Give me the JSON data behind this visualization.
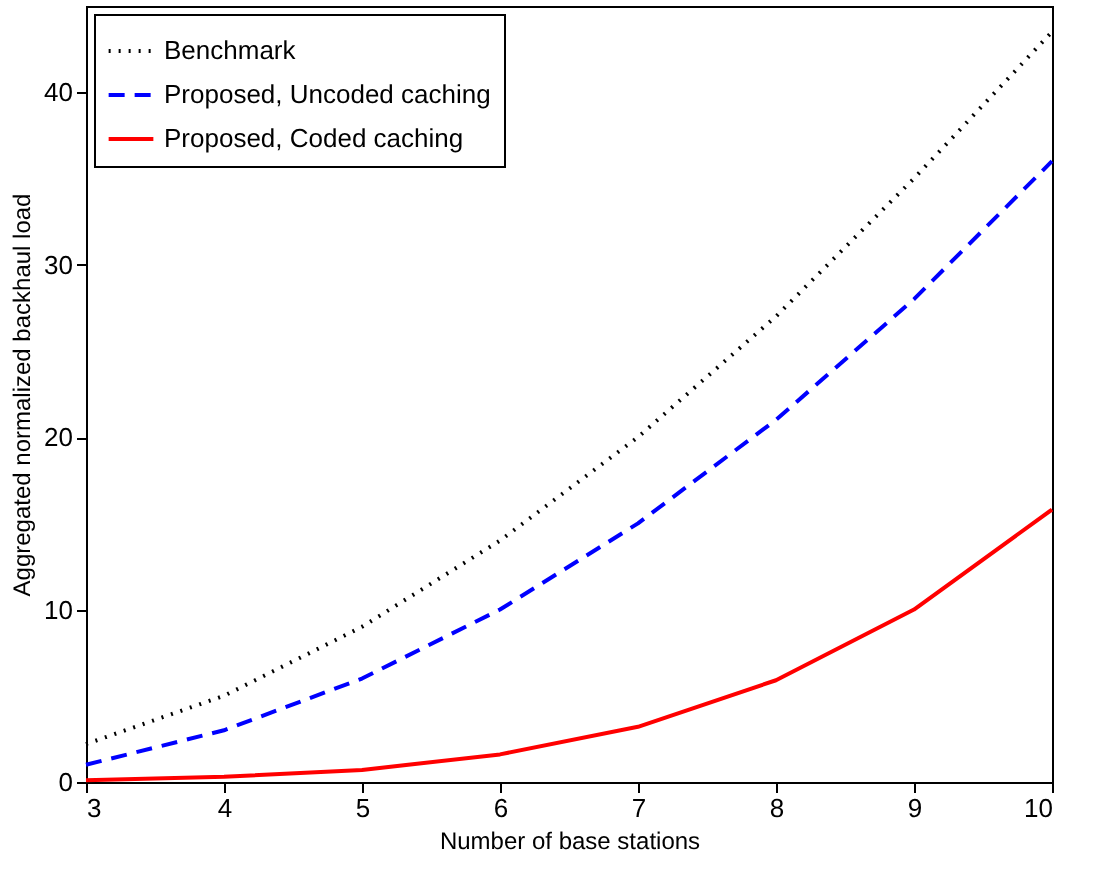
{
  "chart_data": {
    "type": "line",
    "xlabel": "Number of base stations",
    "ylabel": "Aggregated normalized backhaul load",
    "x": [
      3,
      4,
      5,
      6,
      7,
      8,
      9,
      10
    ],
    "series": [
      {
        "name": "Benchmark",
        "color": "#000000",
        "line_style": "dotted",
        "values": [
          2.2,
          5,
          9,
          14,
          20,
          27,
          35,
          43.5
        ]
      },
      {
        "name": "Proposed, Uncoded caching",
        "color": "#0000ff",
        "line_style": "dashed",
        "values": [
          1,
          3,
          6,
          10,
          15,
          21,
          28,
          36
        ]
      },
      {
        "name": "Proposed, Coded caching",
        "color": "#ff0000",
        "line_style": "solid",
        "values": [
          0.1,
          0.3,
          0.7,
          1.6,
          3.2,
          5.9,
          10,
          15.8
        ]
      }
    ],
    "xlim": [
      3,
      10
    ],
    "xticks": [
      3,
      4,
      5,
      6,
      7,
      8,
      9,
      10
    ],
    "ylim": [
      0,
      45
    ],
    "yticks": [
      0,
      10,
      20,
      30,
      40
    ],
    "grid": false,
    "legend": "top left",
    "marker": "none"
  }
}
